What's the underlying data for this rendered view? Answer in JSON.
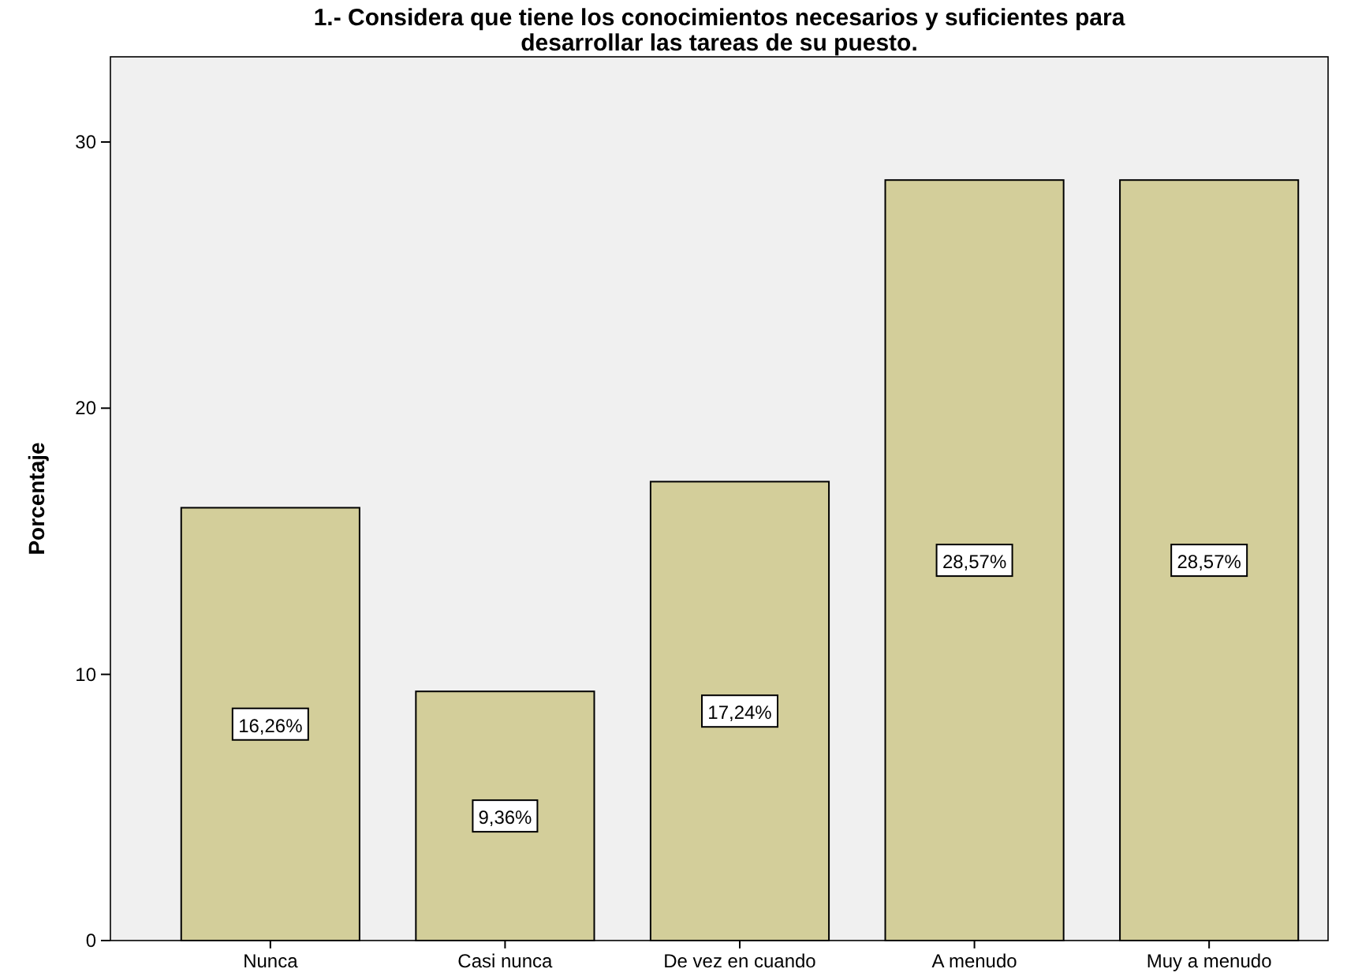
{
  "chart_data": {
    "type": "bar",
    "title": "1.- Considera que tiene los conocimientos necesarios y suficientes para desarrollar las tareas de su puesto.",
    "ylabel": "Porcentaje",
    "categories": [
      "Nunca",
      "Casi nunca",
      "De vez en cuando",
      "A menudo",
      "Muy a menudo"
    ],
    "values": [
      16.26,
      9.36,
      17.24,
      28.57,
      28.57
    ],
    "value_labels": [
      "16,26%",
      "9,36%",
      "17,24%",
      "28,57%",
      "28,57%"
    ],
    "color": "#d3ce9a",
    "ylim": [
      0,
      33.2
    ],
    "yticks": [
      0,
      10,
      20,
      30
    ],
    "grid": false
  }
}
